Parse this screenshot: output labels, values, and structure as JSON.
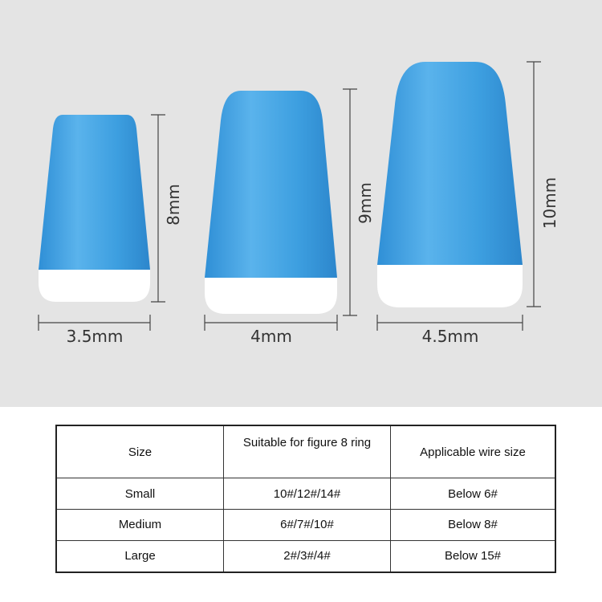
{
  "colors": {
    "bead": "#3d9fe0",
    "bead_tip": "#ffffff",
    "background": "#e4e4e4"
  },
  "beads": [
    {
      "size": "Small",
      "height_label": "8mm",
      "width_label": "3.5mm"
    },
    {
      "size": "Medium",
      "height_label": "9mm",
      "width_label": "4mm"
    },
    {
      "size": "Large",
      "height_label": "10mm",
      "width_label": "4.5mm"
    }
  ],
  "table": {
    "headers": [
      "Size",
      "Suitable for figure 8 ring",
      "Applicable wire size"
    ],
    "rows": [
      [
        "Small",
        "10#/12#/14#",
        "Below 6#"
      ],
      [
        "Medium",
        "6#/7#/10#",
        "Below 8#"
      ],
      [
        "Large",
        "2#/3#/4#",
        "Below 15#"
      ]
    ]
  }
}
